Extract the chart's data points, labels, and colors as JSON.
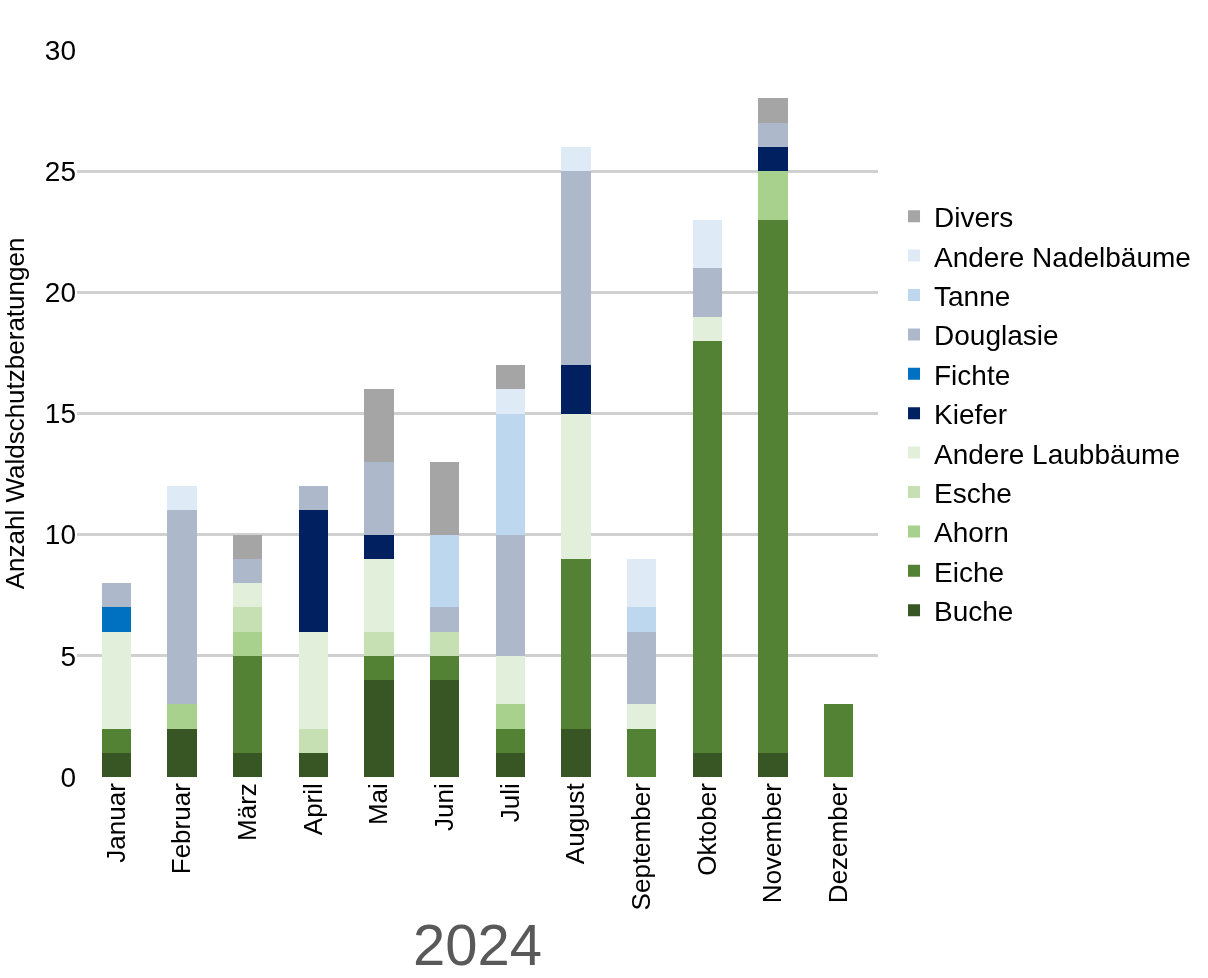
{
  "chart_data": {
    "type": "bar",
    "stacked": true,
    "xlabel": "2024",
    "ylabel": "Anzahl Waldschutzberatungen",
    "categories": [
      "Januar",
      "Februar",
      "März",
      "April",
      "Mai",
      "Juni",
      "Juli",
      "August",
      "September",
      "Oktober",
      "November",
      "Dezember"
    ],
    "series": [
      {
        "name": "Buche",
        "color": "#375623",
        "values": [
          1,
          2,
          1,
          1,
          4,
          4,
          1,
          2,
          0,
          1,
          1,
          0
        ]
      },
      {
        "name": "Eiche",
        "color": "#548235",
        "values": [
          1,
          0,
          4,
          0,
          1,
          1,
          1,
          7,
          2,
          17,
          22,
          3
        ]
      },
      {
        "name": "Ahorn",
        "color": "#a9d18e",
        "values": [
          0,
          1,
          1,
          0,
          0,
          0,
          1,
          0,
          0,
          0,
          2,
          0
        ]
      },
      {
        "name": "Esche",
        "color": "#c6e0b4",
        "values": [
          0,
          0,
          1,
          1,
          1,
          1,
          0,
          0,
          0,
          0,
          0,
          0
        ]
      },
      {
        "name": "Andere Laubbäume",
        "color": "#e2efda",
        "values": [
          4,
          0,
          1,
          4,
          3,
          0,
          2,
          6,
          1,
          1,
          0,
          0
        ]
      },
      {
        "name": "Kiefer",
        "color": "#002060",
        "values": [
          0,
          0,
          0,
          5,
          1,
          0,
          0,
          2,
          0,
          0,
          1,
          0
        ]
      },
      {
        "name": "Fichte",
        "color": "#0070c0",
        "values": [
          1,
          0,
          0,
          0,
          0,
          0,
          0,
          0,
          0,
          0,
          0,
          0
        ]
      },
      {
        "name": "Douglasie",
        "color": "#adb9ca",
        "values": [
          1,
          8,
          1,
          1,
          3,
          1,
          5,
          8,
          3,
          2,
          1,
          0
        ]
      },
      {
        "name": "Tanne",
        "color": "#bdd7ee",
        "values": [
          0,
          0,
          0,
          0,
          0,
          3,
          5,
          0,
          1,
          0,
          0,
          0
        ]
      },
      {
        "name": "Andere Nadelbäume",
        "color": "#deebf7",
        "values": [
          0,
          1,
          0,
          0,
          0,
          0,
          1,
          1,
          2,
          2,
          0,
          0
        ]
      },
      {
        "name": "Divers",
        "color": "#a5a5a5",
        "values": [
          0,
          0,
          1,
          0,
          3,
          3,
          1,
          0,
          0,
          0,
          1,
          0
        ]
      }
    ],
    "ylim": [
      0,
      30
    ],
    "yticks": [
      0,
      5,
      10,
      15,
      20,
      25,
      30
    ],
    "grid": "y",
    "legend": "right"
  }
}
